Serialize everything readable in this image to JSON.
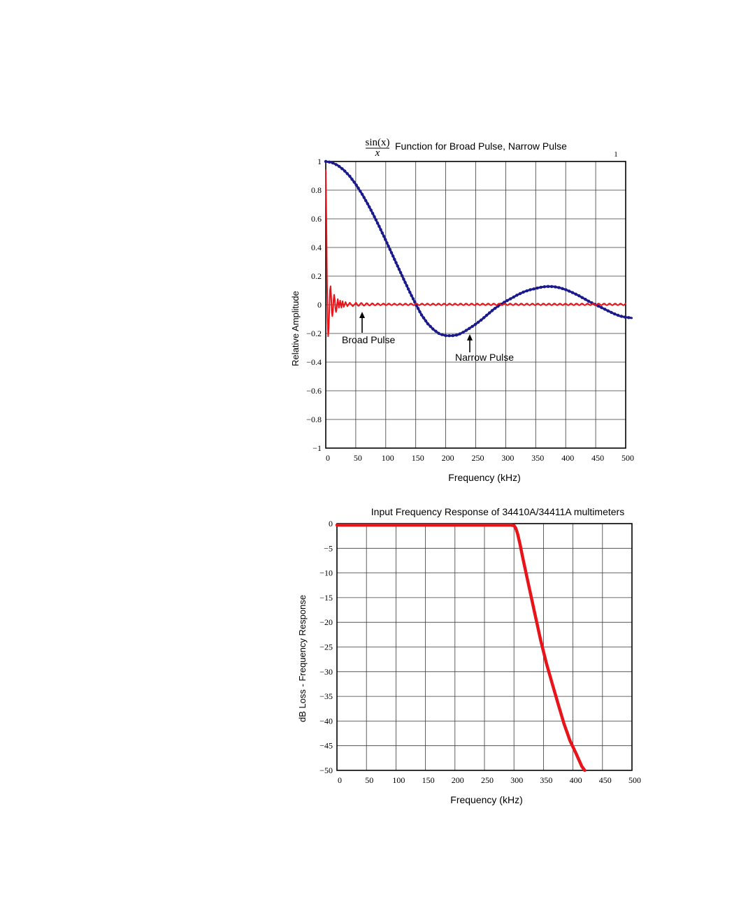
{
  "chart_data": [
    {
      "type": "line",
      "title_fraction": {
        "numerator": "sin(x)",
        "denominator": "x"
      },
      "title": "Function for Broad Pulse, Narrow Pulse",
      "corner_mark": "1",
      "xlabel": "Frequency (kHz)",
      "ylabel": "Relative Amplitude",
      "xlim": [
        0,
        500
      ],
      "ylim": [
        -1,
        1
      ],
      "x_ticks": [
        "0",
        "50",
        "100",
        "150",
        "200",
        "250",
        "300",
        "350",
        "400",
        "450",
        "500"
      ],
      "y_ticks": [
        "1",
        "0.8",
        "0.6",
        "0.4",
        "0.2",
        "0",
        "−0.2",
        "−0.4",
        "−0.6",
        "−0.8",
        "−1"
      ],
      "grid": true,
      "annotations": [
        {
          "text": "Broad Pulse",
          "x": 57,
          "y": -0.07
        },
        {
          "text": "Narrow Pulse",
          "x": 237,
          "y": -0.2
        }
      ],
      "series": [
        {
          "color": "#1a1a8c",
          "style": "dotted-thick",
          "x": [
            0,
            10,
            20,
            30,
            40,
            50,
            60,
            70,
            80,
            90,
            100,
            110,
            120,
            130,
            140,
            150,
            160,
            170,
            180,
            190,
            200,
            210,
            220,
            230,
            240,
            250,
            260,
            270,
            280,
            290,
            300,
            310,
            320,
            330,
            340,
            350,
            360,
            370,
            380,
            390,
            400,
            410,
            420,
            430,
            440,
            450,
            460,
            470,
            480,
            490,
            500,
            510
          ],
          "y": [
            1.0,
            0.993,
            0.973,
            0.941,
            0.897,
            0.841,
            0.776,
            0.703,
            0.624,
            0.539,
            0.45,
            0.359,
            0.268,
            0.178,
            0.09,
            0.005,
            -0.073,
            -0.132,
            -0.174,
            -0.204,
            -0.215,
            -0.216,
            -0.21,
            -0.19,
            -0.163,
            -0.135,
            -0.103,
            -0.067,
            -0.031,
            -0.002,
            0.024,
            0.047,
            0.07,
            0.09,
            0.104,
            0.114,
            0.124,
            0.128,
            0.127,
            0.119,
            0.106,
            0.088,
            0.068,
            0.045,
            0.021,
            0.0,
            -0.02,
            -0.041,
            -0.061,
            -0.078,
            -0.087,
            -0.092
          ]
        },
        {
          "color": "#e8141a",
          "style": "solid",
          "x": [
            0,
            1,
            2,
            3,
            4,
            5,
            6,
            7,
            8,
            9,
            10,
            11,
            12,
            13,
            14,
            15,
            16,
            17,
            18,
            19,
            20,
            22,
            24,
            26,
            28,
            30,
            33,
            36,
            40,
            45,
            50,
            60,
            70,
            80,
            90,
            100,
            150,
            200,
            250,
            300,
            350,
            400,
            450,
            500
          ],
          "y": [
            0.94,
            0.6,
            0.2,
            -0.1,
            -0.22,
            -0.16,
            -0.03,
            0.1,
            0.13,
            0.06,
            -0.05,
            -0.08,
            -0.04,
            0.04,
            0.07,
            0.04,
            -0.02,
            -0.05,
            -0.04,
            0.01,
            0.04,
            -0.02,
            0.03,
            -0.02,
            0.025,
            -0.015,
            0.02,
            -0.01,
            0.015,
            -0.01,
            0.012,
            0.008,
            0.006,
            0.005,
            0.004,
            0.004,
            0.003,
            0.002,
            0.002,
            0.002,
            0.002,
            0.002,
            0.002,
            0.002
          ],
          "ripple_from_x": 50
        }
      ]
    },
    {
      "type": "line",
      "title": "Input Frequency Response of 34410A/34411A multimeters",
      "xlabel": "Frequency (kHz)",
      "ylabel": "dB Loss - Frequency Response",
      "xlim": [
        0,
        500
      ],
      "ylim": [
        -50,
        0
      ],
      "x_ticks": [
        "0",
        "50",
        "100",
        "150",
        "200",
        "250",
        "300",
        "350",
        "400",
        "450",
        "500"
      ],
      "y_ticks": [
        "0",
        "−5",
        "−10",
        "−15",
        "−20",
        "−25",
        "−30",
        "−35",
        "−40",
        "−45",
        "−50"
      ],
      "grid": true,
      "series": [
        {
          "color": "#e8141a",
          "style": "solid-thick",
          "x": [
            0,
            100,
            200,
            295,
            300,
            303,
            306,
            310,
            315,
            325,
            335,
            345,
            355,
            365,
            375,
            385,
            395,
            405,
            415,
            420
          ],
          "y": [
            -0.3,
            -0.3,
            -0.3,
            -0.3,
            -0.4,
            -0.9,
            -2.0,
            -4.0,
            -7.0,
            -12.5,
            -18.0,
            -23.5,
            -28.3,
            -32.5,
            -36.6,
            -40.6,
            -44.0,
            -46.5,
            -49.2,
            -50.0
          ]
        }
      ]
    }
  ]
}
